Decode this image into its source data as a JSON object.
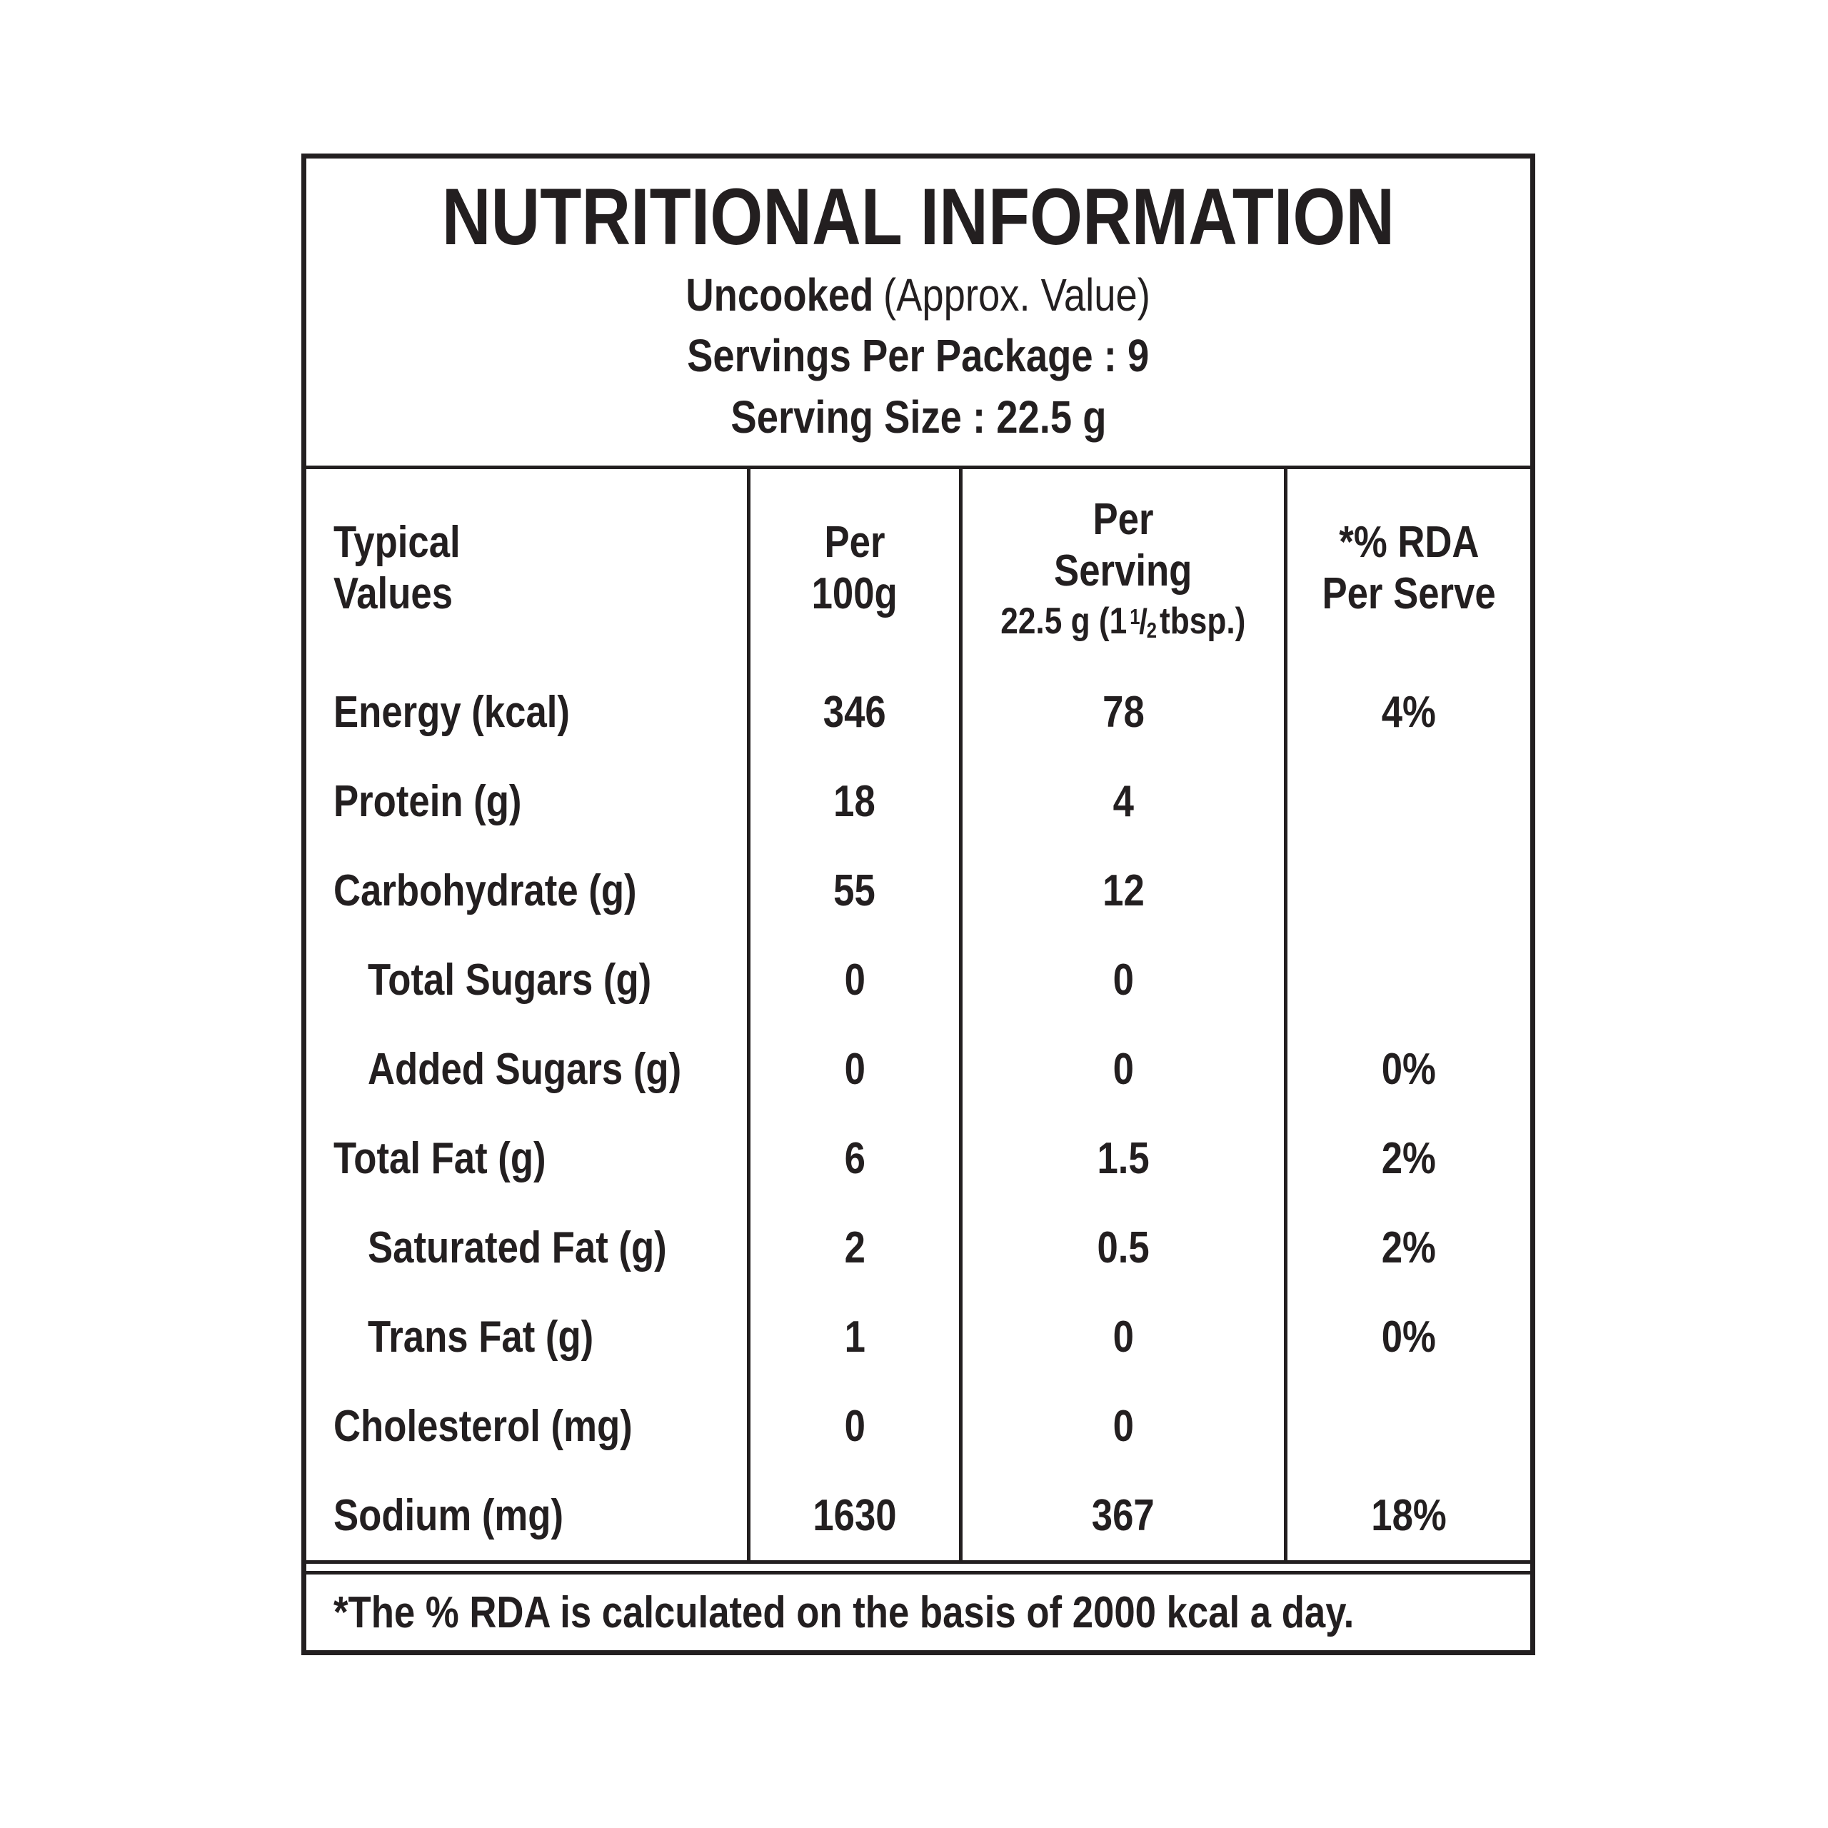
{
  "colors": {
    "ink": "#231f20",
    "background": "#ffffff"
  },
  "header": {
    "title": "NUTRITIONAL INFORMATION",
    "state_bold": "Uncooked",
    "state_note": "(Approx. Value)",
    "servings_per_package": "Servings Per Package : 9",
    "serving_size": "Serving Size : 22.5 g"
  },
  "table": {
    "col_typical_line1": "Typical",
    "col_typical_line2": "Values",
    "col_per100_line1": "Per",
    "col_per100_line2": "100g",
    "col_serving_line1": "Per",
    "col_serving_line2": "Serving",
    "col_serving_line3_prefix": "22.5 g (1",
    "col_serving_frac_num": "1",
    "col_serving_frac_slash": "/",
    "col_serving_frac_den": "2",
    "col_serving_line3_suffix": "tbsp.)",
    "col_rda_line1": "*% RDA",
    "col_rda_line2": "Per Serve",
    "rows": [
      {
        "label": "Energy (kcal)",
        "indent": false,
        "per_100g": "346",
        "per_serving": "78",
        "rda": "4%"
      },
      {
        "label": "Protein (g)",
        "indent": false,
        "per_100g": "18",
        "per_serving": "4",
        "rda": ""
      },
      {
        "label": "Carbohydrate (g)",
        "indent": false,
        "per_100g": "55",
        "per_serving": "12",
        "rda": ""
      },
      {
        "label": "Total Sugars (g)",
        "indent": true,
        "per_100g": "0",
        "per_serving": "0",
        "rda": ""
      },
      {
        "label": "Added Sugars (g)",
        "indent": true,
        "per_100g": "0",
        "per_serving": "0",
        "rda": "0%"
      },
      {
        "label": "Total Fat (g)",
        "indent": false,
        "per_100g": "6",
        "per_serving": "1.5",
        "rda": "2%"
      },
      {
        "label": "Saturated Fat (g)",
        "indent": true,
        "per_100g": "2",
        "per_serving": "0.5",
        "rda": "2%"
      },
      {
        "label": "Trans Fat (g)",
        "indent": true,
        "per_100g": "1",
        "per_serving": "0",
        "rda": "0%"
      },
      {
        "label": "Cholesterol (mg)",
        "indent": false,
        "per_100g": "0",
        "per_serving": "0",
        "rda": ""
      },
      {
        "label": "Sodium (mg)",
        "indent": false,
        "per_100g": "1630",
        "per_serving": "367",
        "rda": "18%"
      }
    ]
  },
  "footer": {
    "note": "*The % RDA is calculated on the basis of 2000 kcal a day."
  }
}
